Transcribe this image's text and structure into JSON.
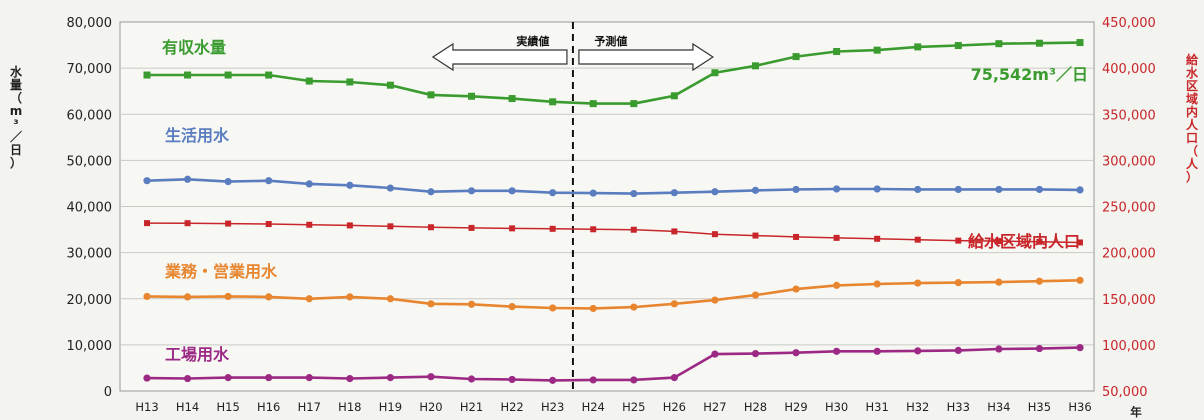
{
  "chart_data": {
    "type": "line",
    "categories": [
      "H13",
      "H14",
      "H15",
      "H16",
      "H17",
      "H18",
      "H19",
      "H20",
      "H21",
      "H22",
      "H23",
      "H24",
      "H25",
      "H26",
      "H27",
      "H28",
      "H29",
      "H30",
      "H31",
      "H32",
      "H33",
      "H34",
      "H35",
      "H36"
    ],
    "x_unit_label": "年",
    "ylabel_left": "水量（m³／日）",
    "ylabel_right": "給水区域内人口（人）",
    "ylim_left": [
      0,
      80000
    ],
    "yticks_left": [
      "0",
      "10,000",
      "20,000",
      "30,000",
      "40,000",
      "50,000",
      "60,000",
      "70,000",
      "80,000"
    ],
    "ylim_right": [
      50000,
      450000
    ],
    "yticks_right": [
      "50,000",
      "100,000",
      "150,000",
      "200,000",
      "250,000",
      "300,000",
      "350,000",
      "400,000",
      "450,000"
    ],
    "grid": true,
    "divider": {
      "after_category": "H23",
      "left_label": "実績値",
      "right_label": "予測値"
    },
    "annotation": "75,542m³／日",
    "series": [
      {
        "name": "有収水量",
        "axis": "left",
        "color": "#3a9b2f",
        "marker": "square",
        "values": [
          68500,
          68500,
          68500,
          68500,
          67200,
          67000,
          66300,
          64200,
          63900,
          63400,
          62700,
          62300,
          62300,
          64000,
          69000,
          70500,
          72500,
          73600,
          73900,
          74600,
          74900,
          75300,
          75400,
          75542
        ]
      },
      {
        "name": "生活用水",
        "axis": "left",
        "color": "#5a7dc0",
        "marker": "circle",
        "values": [
          45600,
          45900,
          45400,
          45600,
          44900,
          44600,
          44000,
          43200,
          43400,
          43400,
          43000,
          42900,
          42800,
          43000,
          43200,
          43500,
          43700,
          43800,
          43800,
          43700,
          43700,
          43700,
          43700,
          43600
        ]
      },
      {
        "name": "業務・営業用水",
        "axis": "left",
        "color": "#e8862f",
        "marker": "circle",
        "values": [
          20500,
          20400,
          20500,
          20400,
          20000,
          20400,
          20000,
          18900,
          18800,
          18300,
          18000,
          17900,
          18200,
          18900,
          19700,
          20800,
          22100,
          22900,
          23200,
          23400,
          23500,
          23600,
          23800,
          24000
        ]
      },
      {
        "name": "工場用水",
        "axis": "left",
        "color": "#9c2a85",
        "marker": "circle",
        "values": [
          2800,
          2700,
          2900,
          2900,
          2900,
          2700,
          2900,
          3100,
          2600,
          2500,
          2300,
          2400,
          2400,
          2900,
          8000,
          8100,
          8300,
          8600,
          8600,
          8700,
          8800,
          9100,
          9200,
          9400
        ]
      },
      {
        "name": "給水区域内人口",
        "axis": "right",
        "color": "#c8262a",
        "marker": "square",
        "values": [
          232000,
          231900,
          231500,
          231000,
          230200,
          229500,
          228500,
          227500,
          226800,
          226300,
          225800,
          225300,
          224800,
          223000,
          220000,
          218500,
          217000,
          216000,
          215000,
          214000,
          213000,
          212500,
          211800,
          211000
        ]
      }
    ]
  }
}
